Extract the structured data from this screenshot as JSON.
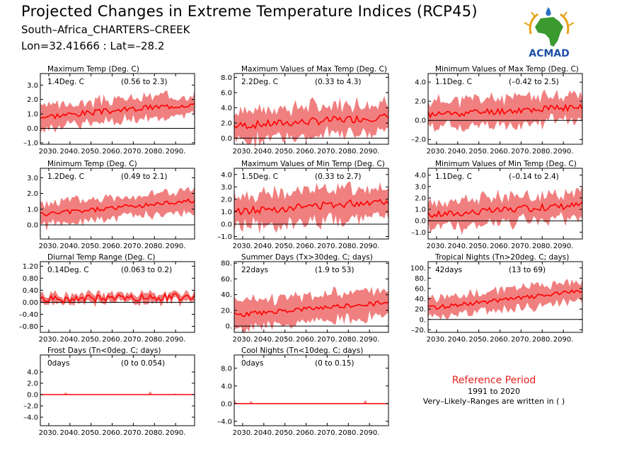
{
  "header": {
    "title": "Projected Changes in Extreme Temperature Indices (RCP45)",
    "location": "South–Africa_CHARTERS–CREEK",
    "coords": "Lon=32.41666 : Lat=–28.2"
  },
  "logo": {
    "text": "ACMAD"
  },
  "reference": {
    "title": "Reference Period",
    "period": "1991 to 2020",
    "note": "Very–Likely–Ranges are written in ( )"
  },
  "colors": {
    "band": "#f08080",
    "line": "#ff0000",
    "zero": "#000000"
  },
  "chart_data": [
    {
      "type": "line",
      "title": "Maximum Temp (Deg. C)",
      "value_text": "1.4Deg. C",
      "range_text": "(0.56 to 2.3)",
      "ylim": [
        -1.1,
        3.8
      ],
      "yticks": [
        "3.0",
        "2.0",
        "1.0",
        "0.0",
        "–1.0"
      ],
      "ytick_values": [
        3,
        2,
        1,
        0,
        -1
      ],
      "xticks": [
        "2030.",
        "2040.",
        "2050.",
        "2060.",
        "2070.",
        "2080.",
        "2090."
      ],
      "xtick_values": [
        2030,
        2040,
        2050,
        2060,
        2070,
        2080,
        2090
      ],
      "xlim": [
        2026,
        2099
      ],
      "start": 0.8,
      "end": 1.7,
      "band": 0.7,
      "noise": 0.2,
      "seed": 3
    },
    {
      "type": "line",
      "title": "Maximum Values of Max Temp (Deg. C)",
      "value_text": "2.2Deg. C",
      "range_text": "(0.33 to 4.3)",
      "ylim": [
        -0.8,
        8.5
      ],
      "yticks": [
        "8.0",
        "6.0",
        "4.0",
        "2.0",
        "0.0"
      ],
      "ytick_values": [
        8,
        6,
        4,
        2,
        0
      ],
      "xticks": [
        "2030.",
        "2040.",
        "2050.",
        "2060.",
        "2070.",
        "2080.",
        "2090."
      ],
      "xtick_values": [
        2030,
        2040,
        2050,
        2060,
        2070,
        2080,
        2090
      ],
      "xlim": [
        2026,
        2099
      ],
      "start": 1.6,
      "end": 2.8,
      "band": 1.9,
      "noise": 0.5,
      "seed": 7
    },
    {
      "type": "line",
      "title": "Minimum Values of Max Temp (Deg. C)",
      "value_text": "1.1Deg. C",
      "range_text": "(–0.42 to 2.5)",
      "ylim": [
        -2.5,
        4.9
      ],
      "yticks": [
        "4.0",
        "2.0",
        "0.0",
        "–2.0"
      ],
      "ytick_values": [
        4,
        2,
        0,
        -2
      ],
      "xticks": [
        "2030.",
        "2040.",
        "2050.",
        "2060.",
        "2070.",
        "2080.",
        "2090."
      ],
      "xtick_values": [
        2030,
        2040,
        2050,
        2060,
        2070,
        2080,
        2090
      ],
      "xlim": [
        2026,
        2099
      ],
      "start": 0.6,
      "end": 1.4,
      "band": 1.3,
      "noise": 0.35,
      "seed": 11
    },
    {
      "type": "line",
      "title": "Minimum Temp (Deg. C)",
      "value_text": "1.2Deg. C",
      "range_text": "(0.49 to 2.1)",
      "ylim": [
        -0.9,
        3.6
      ],
      "yticks": [
        "3.0",
        "2.0",
        "1.0",
        "0.0"
      ],
      "ytick_values": [
        3,
        2,
        1,
        0
      ],
      "xticks": [
        "2030.",
        "2040.",
        "2050.",
        "2060.",
        "2070.",
        "2080.",
        "2090."
      ],
      "xtick_values": [
        2030,
        2040,
        2050,
        2060,
        2070,
        2080,
        2090
      ],
      "xlim": [
        2026,
        2099
      ],
      "start": 0.65,
      "end": 1.55,
      "band": 0.65,
      "noise": 0.15,
      "seed": 5
    },
    {
      "type": "line",
      "title": "Maximum Values of Min Temp (Deg. C)",
      "value_text": "1.5Deg. C",
      "range_text": "(0.33 to 2.7)",
      "ylim": [
        -1.2,
        4.5
      ],
      "yticks": [
        "4.0",
        "3.0",
        "2.0",
        "1.0",
        "0.0",
        "–1.0"
      ],
      "ytick_values": [
        4,
        3,
        2,
        1,
        0,
        -1
      ],
      "xticks": [
        "2030.",
        "2040.",
        "2050.",
        "2060.",
        "2070.",
        "2080.",
        "2090."
      ],
      "xtick_values": [
        2030,
        2040,
        2050,
        2060,
        2070,
        2080,
        2090
      ],
      "xlim": [
        2026,
        2099
      ],
      "start": 1.0,
      "end": 1.9,
      "band": 1.2,
      "noise": 0.3,
      "seed": 13
    },
    {
      "type": "line",
      "title": "Minimum Values of Min Temp (Deg. C)",
      "value_text": "1.1Deg. C",
      "range_text": "(–0.14 to 2.4)",
      "ylim": [
        -1.6,
        4.6
      ],
      "yticks": [
        "4.0",
        "3.0",
        "2.0",
        "1.0",
        "0.0",
        "–1.0"
      ],
      "ytick_values": [
        4,
        3,
        2,
        1,
        0,
        -1
      ],
      "xticks": [
        "2030.",
        "2040.",
        "2050.",
        "2060.",
        "2070.",
        "2080.",
        "2090."
      ],
      "xtick_values": [
        2030,
        2040,
        2050,
        2060,
        2070,
        2080,
        2090
      ],
      "xlim": [
        2026,
        2099
      ],
      "start": 0.5,
      "end": 1.4,
      "band": 1.1,
      "noise": 0.3,
      "seed": 17
    },
    {
      "type": "line",
      "title": "Diurnal Temp Range (Deg. C)",
      "value_text": "0.14Deg. C",
      "range_text": "(0.063 to 0.2)",
      "ylim": [
        -1.0,
        1.35
      ],
      "yticks": [
        "1.20",
        "0.80",
        "0.40",
        "0.00",
        "–0.40",
        "–0.80"
      ],
      "ytick_values": [
        1.2,
        0.8,
        0.4,
        0,
        -0.4,
        -0.8
      ],
      "xticks": [
        "2030.",
        "2040.",
        "2050.",
        "2060.",
        "2070.",
        "2080.",
        "2090."
      ],
      "xtick_values": [
        2030,
        2040,
        2050,
        2060,
        2070,
        2080,
        2090
      ],
      "xlim": [
        2026,
        2099
      ],
      "start": 0.1,
      "end": 0.18,
      "band": 0.14,
      "noise": 0.12,
      "seed": 19
    },
    {
      "type": "line",
      "title": "Summer Days (Tx>30deg. C; days)",
      "value_text": "22days",
      "range_text": "(1.9 to 53)",
      "ylim": [
        -8,
        82
      ],
      "yticks": [
        "80.",
        "60.",
        "40.",
        "20.",
        "0."
      ],
      "ytick_values": [
        80,
        60,
        40,
        20,
        0
      ],
      "xticks": [
        "2030.",
        "2040.",
        "2050.",
        "2060.",
        "2070.",
        "2080.",
        "2090."
      ],
      "xtick_values": [
        2030,
        2040,
        2050,
        2060,
        2070,
        2080,
        2090
      ],
      "xlim": [
        2026,
        2099
      ],
      "start": 14,
      "end": 30,
      "band": 16,
      "noise": 3,
      "seed": 23
    },
    {
      "type": "line",
      "title": "Tropical Nights (Tn>20deg. C; days)",
      "value_text": "42days",
      "range_text": "(13 to 69)",
      "ylim": [
        -25,
        112
      ],
      "yticks": [
        "100.",
        "80.",
        "60.",
        "40.",
        "20.",
        "0.",
        "–20."
      ],
      "ytick_values": [
        100,
        80,
        60,
        40,
        20,
        0,
        -20
      ],
      "xticks": [
        "2030.",
        "2040.",
        "2050.",
        "2060.",
        "2070.",
        "2080.",
        "2090."
      ],
      "xtick_values": [
        2030,
        2040,
        2050,
        2060,
        2070,
        2080,
        2090
      ],
      "xlim": [
        2026,
        2099
      ],
      "start": 22,
      "end": 55,
      "band": 18,
      "noise": 4,
      "seed": 29
    },
    {
      "type": "line",
      "title": "Frost Days (Tn<0deg. C; days)",
      "value_text": "0days",
      "range_text": "(0 to 0.054)",
      "ylim": [
        -5.5,
        7
      ],
      "yticks": [
        "4.0",
        "2.0",
        "0.0",
        "–2.0",
        "–4.0"
      ],
      "ytick_values": [
        4,
        2,
        0,
        -2,
        -4
      ],
      "xticks": [
        "2030.",
        "2040.",
        "2050.",
        "2060.",
        "2070.",
        "2080.",
        "2090."
      ],
      "xtick_values": [
        2030,
        2040,
        2050,
        2060,
        2070,
        2080,
        2090
      ],
      "xlim": [
        2026,
        2099
      ],
      "start": 0,
      "end": 0,
      "band": 0.02,
      "noise": 0,
      "seed": 31,
      "spikes": [
        [
          2038,
          0.4
        ],
        [
          2078,
          0.6
        ],
        [
          2090,
          0.2
        ]
      ]
    },
    {
      "type": "line",
      "title": "Cool Nights (Tn<10deg. C; days)",
      "value_text": "0days",
      "range_text": "(0 to 0.15)",
      "ylim": [
        -5,
        11
      ],
      "yticks": [
        "8.0",
        "4.0",
        "0.0",
        "–4.0"
      ],
      "ytick_values": [
        8,
        4,
        0,
        -4
      ],
      "xticks": [
        "2030.",
        "2040.",
        "2050.",
        "2060.",
        "2070.",
        "2080.",
        "2090."
      ],
      "xtick_values": [
        2030,
        2040,
        2050,
        2060,
        2070,
        2080,
        2090
      ],
      "xlim": [
        2026,
        2099
      ],
      "start": 0,
      "end": 0,
      "band": 0.02,
      "noise": 0,
      "seed": 37,
      "spikes": [
        [
          2026,
          1.2
        ],
        [
          2034,
          0.6
        ],
        [
          2088,
          0.8
        ]
      ]
    }
  ]
}
